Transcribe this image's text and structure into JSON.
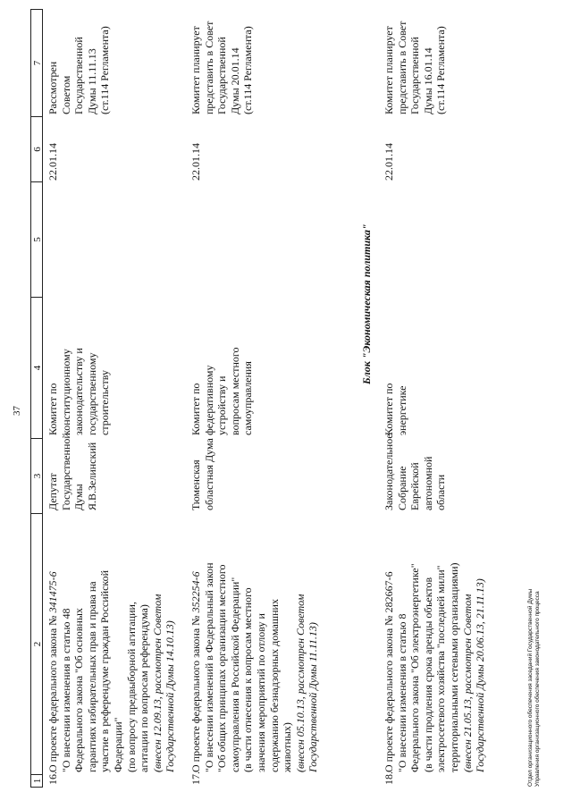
{
  "page_number": "37",
  "table": {
    "headers": [
      "1",
      "2",
      "3",
      "4",
      "5",
      "6",
      "7"
    ],
    "rows": [
      {
        "num": "16.",
        "bill_intro": "О проекте федерального закона № ",
        "bill_number": "341475-6",
        "bill_body": "\n\"О внесении изменения в статью 48\nФедерального закона \"Об основных\nгарантиях избирательных прав и права на\nучастие в референдуме граждан Российской\nФедерации\"\n(по вопросу предвыборной агитации,\nагитации по вопросам референдума)",
        "bill_note": "\n(внесен 12.09.13, рассмотрен Советом\nГосударственной Думы 14.10.13)",
        "initiator": "Депутат\nГосударственной\nДумы\nЯ.В.Зелинский",
        "committee": "Комитет по\nконституционному\nзаконодательству и\nгосударственному\nстроительству",
        "col5": "",
        "date": "22.01.14",
        "status": "Рассмотрен\nСоветом\nГосударственной\nДумы 11.11.13\n(ст.114 Регламента)"
      },
      {
        "num": "17.",
        "bill_intro": "О проекте федерального закона № ",
        "bill_number": "352254-6",
        "bill_body": "\n\"О внесении изменений в Федеральный закон\n\"Об общих принципах организации местного\nсамоуправления в Российской Федерации\"\n(в части отнесения к вопросам местного\nзначения мероприятий по отлову и\nсодержанию безнадзорных домашних\nживотных)",
        "bill_note": "\n(внесен 05.10.13, рассмотрен Советом\nГосударственной Думы 11.11.13)",
        "initiator": "Тюменская\nобластная Дума",
        "committee": "Комитет по\nфедеративному\nустройству и\nвопросам местного\nсамоуправления",
        "col5": "",
        "date": "22.01.14",
        "status": "Комитет планирует\nпредставить в Совет\nГосударственной\nДумы 20.01.14\n(ст.114 Регламента)"
      },
      {
        "num": "18.",
        "bill_intro": "О проекте федерального закона № ",
        "bill_number": "282667-6",
        "bill_body": "\n\"О внесении изменения в статью 8\nФедерального закона \"Об электроэнергетике\"\n(в части продления срока аренды объектов\nэлектросетевого хозяйства \"последней мили\"\nтерриториальными сетевыми организациями)",
        "bill_note": "\n(внесен 21.05.13, рассмотрен Советом\nГосударственной Думы 20.06.13, 21.11.13)",
        "initiator": "Законодательное\nСобрание Еврейской\nавтономной области",
        "committee": "Комитет по\nэнергетике",
        "col5": "",
        "date": "22.01.14",
        "status": "Комитет планирует\nпредставить в Совет\nГосударственной\nДумы 16.01.14\n(ст.114 Регламента)"
      }
    ]
  },
  "block_heading": "Блок \"Экономическая политика\"",
  "footer": "Отдел организационного обеспечения заседаний Государственной Думы\nУправления организационного обеспечения законодательного процесса"
}
